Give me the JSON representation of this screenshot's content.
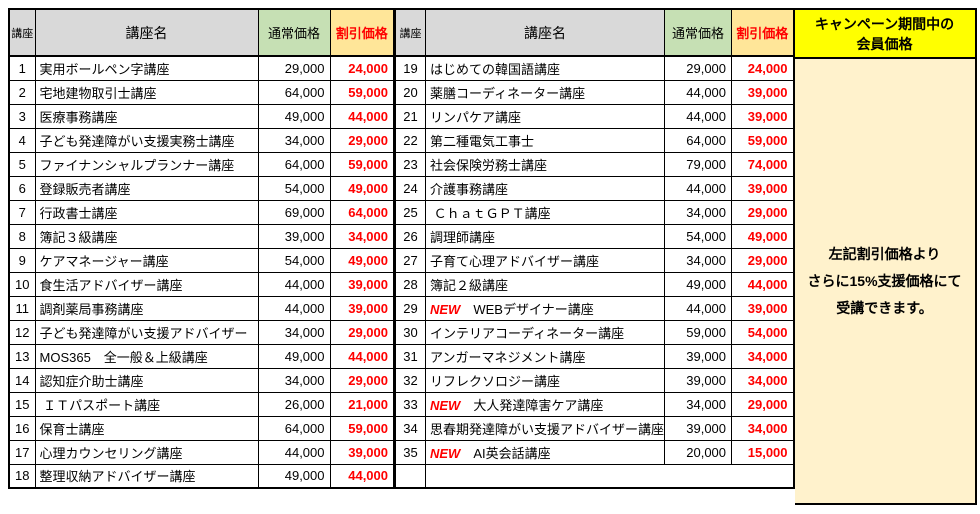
{
  "labels": {
    "col_course_no": "講座",
    "col_course_name": "講座名",
    "col_regular_price": "通常価格",
    "col_discount_price": "割引価格",
    "new_badge": "NEW"
  },
  "panel": {
    "header_line1": "キャンペーン期間中の",
    "header_line2": "会員価格",
    "body_line1": "左記割引価格より",
    "body_line2": "さらに15%支援価格にて",
    "body_line3": "受講できます。"
  },
  "colors": {
    "header_gray": "#d9d9d9",
    "header_green": "#c6e0b4",
    "header_gold": "#ffe699",
    "panel_header_yellow": "#ffff00",
    "panel_body_cream": "#fff2cc",
    "discount_red": "#ff0000",
    "border_black": "#000000"
  },
  "tables": {
    "left": [
      {
        "no": "1",
        "name": "実用ボールペン字講座",
        "regular": "29,000",
        "discount": "24,000",
        "new": false
      },
      {
        "no": "2",
        "name": "宅地建物取引士講座",
        "regular": "64,000",
        "discount": "59,000",
        "new": false
      },
      {
        "no": "3",
        "name": "医療事務講座",
        "regular": "49,000",
        "discount": "44,000",
        "new": false
      },
      {
        "no": "4",
        "name": "子ども発達障がい支援実務士講座",
        "regular": "34,000",
        "discount": "29,000",
        "new": false
      },
      {
        "no": "5",
        "name": "ファイナンシャルプランナー講座",
        "regular": "64,000",
        "discount": "59,000",
        "new": false
      },
      {
        "no": "6",
        "name": "登録販売者講座",
        "regular": "54,000",
        "discount": "49,000",
        "new": false
      },
      {
        "no": "7",
        "name": "行政書士講座",
        "regular": "69,000",
        "discount": "64,000",
        "new": false
      },
      {
        "no": "8",
        "name": "簿記３級講座",
        "regular": "39,000",
        "discount": "34,000",
        "new": false
      },
      {
        "no": "9",
        "name": "ケアマネージャー講座",
        "regular": "54,000",
        "discount": "49,000",
        "new": false
      },
      {
        "no": "10",
        "name": "食生活アドバイザー講座",
        "regular": "44,000",
        "discount": "39,000",
        "new": false
      },
      {
        "no": "11",
        "name": "調剤薬局事務講座",
        "regular": "44,000",
        "discount": "39,000",
        "new": false
      },
      {
        "no": "12",
        "name": "子ども発達障がい支援アドバイザー",
        "regular": "34,000",
        "discount": "29,000",
        "new": false
      },
      {
        "no": "13",
        "name": "MOS365　全一般＆上級講座",
        "regular": "49,000",
        "discount": "44,000",
        "new": false
      },
      {
        "no": "14",
        "name": "認知症介助士講座",
        "regular": "34,000",
        "discount": "29,000",
        "new": false
      },
      {
        "no": "15",
        "name": " ＩＴパスポート講座",
        "regular": "26,000",
        "discount": "21,000",
        "new": false
      },
      {
        "no": "16",
        "name": "保育士講座",
        "regular": "64,000",
        "discount": "59,000",
        "new": false
      },
      {
        "no": "17",
        "name": "心理カウンセリング講座",
        "regular": "44,000",
        "discount": "39,000",
        "new": false
      },
      {
        "no": "18",
        "name": "整理収納アドバイザー講座",
        "regular": "49,000",
        "discount": "44,000",
        "new": false
      }
    ],
    "right": [
      {
        "no": "19",
        "name": "はじめての韓国語講座",
        "regular": "29,000",
        "discount": "24,000",
        "new": false
      },
      {
        "no": "20",
        "name": "薬膳コーディネーター講座",
        "regular": "44,000",
        "discount": "39,000",
        "new": false
      },
      {
        "no": "21",
        "name": "リンパケア講座",
        "regular": "44,000",
        "discount": "39,000",
        "new": false
      },
      {
        "no": "22",
        "name": "第二種電気工事士",
        "regular": "64,000",
        "discount": "59,000",
        "new": false
      },
      {
        "no": "23",
        "name": "社会保険労務士講座",
        "regular": "79,000",
        "discount": "74,000",
        "new": false
      },
      {
        "no": "24",
        "name": "介護事務講座",
        "regular": "44,000",
        "discount": "39,000",
        "new": false
      },
      {
        "no": "25",
        "name": " ＣｈａｔＧＰＴ講座",
        "regular": "34,000",
        "discount": "29,000",
        "new": false
      },
      {
        "no": "26",
        "name": "調理師講座",
        "regular": "54,000",
        "discount": "49,000",
        "new": false
      },
      {
        "no": "27",
        "name": "子育て心理アドバイザー講座",
        "regular": "34,000",
        "discount": "29,000",
        "new": false
      },
      {
        "no": "28",
        "name": "簿記２級講座",
        "regular": "49,000",
        "discount": "44,000",
        "new": false
      },
      {
        "no": "29",
        "name": "WEBデザイナー講座",
        "regular": "44,000",
        "discount": "39,000",
        "new": true
      },
      {
        "no": "30",
        "name": "インテリアコーディネーター講座",
        "regular": "59,000",
        "discount": "54,000",
        "new": false
      },
      {
        "no": "31",
        "name": "アンガーマネジメント講座",
        "regular": "39,000",
        "discount": "34,000",
        "new": false
      },
      {
        "no": "32",
        "name": "リフレクソロジー講座",
        "regular": "39,000",
        "discount": "34,000",
        "new": false
      },
      {
        "no": "33",
        "name": "大人発達障害ケア講座",
        "regular": "34,000",
        "discount": "29,000",
        "new": true
      },
      {
        "no": "34",
        "name": "思春期発達障がい支援アドバイザー講座",
        "regular": "39,000",
        "discount": "34,000",
        "new": false
      },
      {
        "no": "35",
        "name": "AI英会話講座",
        "regular": "20,000",
        "discount": "15,000",
        "new": true
      }
    ]
  }
}
